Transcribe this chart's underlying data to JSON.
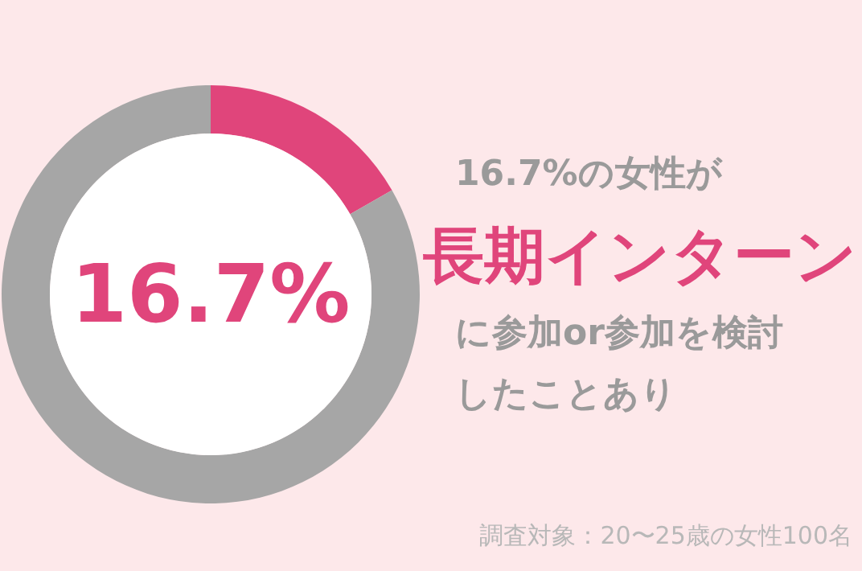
{
  "chart_data": {
    "type": "donut",
    "categories": [
      null,
      null
    ],
    "values": [
      16.7,
      83.3
    ],
    "colors": [
      "#e0457b",
      "#a6a6a6"
    ],
    "annotations": [
      "16.7%",
      "16.7%の女性が",
      "長期インターン",
      "に参加or参加を検討",
      "したことあり",
      "調査対象：20〜25歳の女性100名"
    ]
  }
}
